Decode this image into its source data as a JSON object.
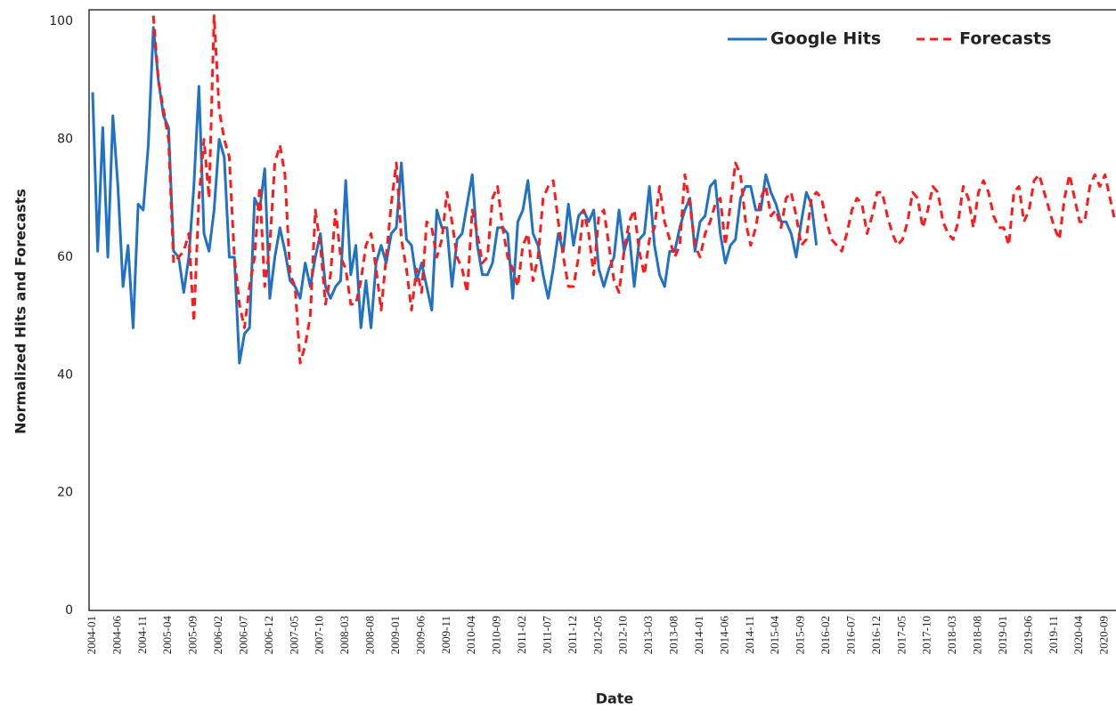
{
  "chart_data": {
    "type": "line",
    "x_label": "Date",
    "y_label": "Normalized Hits and Forecasts",
    "ylim": [
      0,
      102
    ],
    "yticks": [
      0,
      20,
      40,
      60,
      80,
      100
    ],
    "grid": false,
    "legend": "upper right",
    "categories": [
      "2004-01",
      null,
      null,
      null,
      null,
      "2004-06",
      null,
      null,
      null,
      null,
      "2004-11",
      null,
      null,
      null,
      null,
      "2005-04",
      null,
      null,
      null,
      null,
      "2005-09",
      null,
      null,
      null,
      null,
      "2006-02",
      null,
      null,
      null,
      null,
      "2006-07",
      null,
      null,
      null,
      null,
      "2006-12",
      null,
      null,
      null,
      null,
      "2007-05",
      null,
      null,
      null,
      null,
      "2007-10",
      null,
      null,
      null,
      null,
      "2008-03",
      null,
      null,
      null,
      null,
      "2008-08",
      null,
      null,
      null,
      null,
      "2009-01",
      null,
      null,
      null,
      null,
      "2009-06",
      null,
      null,
      null,
      null,
      "2009-11",
      null,
      null,
      null,
      null,
      "2010-04",
      null,
      null,
      null,
      null,
      "2010-09",
      null,
      null,
      null,
      null,
      "2011-02",
      null,
      null,
      null,
      null,
      "2011-07",
      null,
      null,
      null,
      null,
      "2011-12",
      null,
      null,
      null,
      null,
      "2012-05",
      null,
      null,
      null,
      null,
      "2012-10",
      null,
      null,
      null,
      null,
      "2013-03",
      null,
      null,
      null,
      null,
      "2013-08",
      null,
      null,
      null,
      null,
      "2014-01",
      null,
      null,
      null,
      null,
      "2014-06",
      null,
      null,
      null,
      null,
      "2014-11",
      null,
      null,
      null,
      null,
      "2015-04",
      null,
      null,
      null,
      null,
      "2015-09",
      null,
      null,
      null,
      null,
      "2016-02",
      null,
      null,
      null,
      null,
      "2016-07",
      null,
      null,
      null,
      null,
      "2016-12",
      null,
      null,
      null,
      null,
      "2017-05",
      null,
      null,
      null,
      null,
      "2017-10",
      null,
      null,
      null,
      null,
      "2018-03",
      null,
      null,
      null,
      null,
      "2018-08",
      null,
      null,
      null,
      null,
      "2019-01",
      null,
      null,
      null,
      null,
      "2019-06",
      null,
      null,
      null,
      null,
      "2019-11",
      null,
      null,
      null,
      null,
      "2020-04",
      null,
      null,
      null,
      null,
      "2020-09",
      null,
      null
    ],
    "series": [
      {
        "name": "Google Hits",
        "color": "#1f72c6",
        "dash": false,
        "values": [
          88,
          61,
          82,
          60,
          84,
          72,
          55,
          62,
          48,
          69,
          68,
          79,
          99,
          90,
          84,
          82,
          61,
          60,
          54,
          60,
          72,
          89,
          64,
          61,
          68,
          80,
          77,
          60,
          60,
          42,
          47,
          48,
          70,
          68,
          75,
          53,
          60,
          65,
          61,
          56,
          55,
          53,
          59,
          55,
          60,
          64,
          55,
          53,
          55,
          56,
          73,
          57,
          62,
          48,
          56,
          48,
          59,
          62,
          59,
          64,
          65,
          76,
          63,
          62,
          56,
          59,
          55,
          51,
          68,
          65,
          65,
          55,
          63,
          64,
          69,
          74,
          62,
          57,
          57,
          59,
          65,
          65,
          64,
          53,
          66,
          68,
          73,
          64,
          62,
          57,
          53,
          58,
          64,
          61,
          69,
          62,
          67,
          68,
          66,
          68,
          58,
          55,
          58,
          60,
          68,
          61,
          64,
          55,
          63,
          64,
          72,
          62,
          57,
          55,
          61,
          61,
          65,
          68,
          70,
          61,
          66,
          67,
          72,
          73,
          64,
          59,
          62,
          63,
          70,
          72,
          72,
          68,
          68,
          74,
          71,
          69,
          66,
          66,
          64,
          60,
          66,
          71,
          69,
          62,
          null,
          null,
          null,
          null,
          null,
          null,
          null,
          null,
          null,
          null,
          null,
          null,
          null,
          null,
          null,
          null,
          null,
          null,
          null,
          null,
          null,
          null,
          null,
          null,
          null,
          null,
          null,
          null,
          null,
          null,
          null,
          null,
          null,
          null,
          null,
          null,
          null,
          null,
          null,
          null,
          null,
          null,
          null,
          null,
          null,
          null,
          null,
          null,
          null,
          null,
          null,
          null,
          null,
          null,
          null,
          null,
          null,
          null,
          null
        ]
      },
      {
        "name": "Forecasts",
        "color": "#ff1a1a",
        "dash": true,
        "values": [
          null,
          null,
          null,
          null,
          null,
          null,
          null,
          null,
          null,
          null,
          null,
          null,
          101,
          90,
          85,
          80,
          59,
          60,
          61,
          64,
          49,
          70,
          80,
          70,
          101,
          85,
          80,
          77,
          60,
          52,
          48,
          55,
          60,
          72,
          55,
          62,
          76,
          79,
          74,
          57,
          55,
          42,
          45,
          50,
          68,
          62,
          52,
          57,
          68,
          60,
          58,
          52,
          52,
          56,
          62,
          64,
          58,
          51,
          60,
          69,
          76,
          63,
          58,
          51,
          58,
          54,
          66,
          65,
          60,
          63,
          71,
          66,
          60,
          58,
          54,
          68,
          64,
          59,
          60,
          70,
          72,
          65,
          60,
          58,
          55,
          62,
          64,
          56,
          60,
          70,
          72,
          73,
          66,
          60,
          55,
          55,
          60,
          68,
          64,
          57,
          67,
          68,
          62,
          56,
          54,
          61,
          66,
          68,
          61,
          57,
          63,
          65,
          72,
          66,
          63,
          60,
          62,
          74,
          69,
          62,
          60,
          64,
          66,
          69,
          70,
          62,
          69,
          76,
          74,
          66,
          62,
          65,
          70,
          72,
          67,
          68,
          65,
          70,
          71,
          67,
          62,
          63,
          70,
          71,
          70,
          66,
          63,
          62,
          61,
          64,
          68,
          70,
          69,
          64,
          67,
          71,
          71,
          67,
          64,
          62,
          63,
          66,
          71,
          70,
          65,
          68,
          72,
          71,
          66,
          64,
          63,
          66,
          72,
          70,
          65,
          71,
          73,
          71,
          67,
          65,
          65,
          62,
          71,
          72,
          66,
          68,
          73,
          74,
          71,
          68,
          65,
          63,
          70,
          74,
          70,
          66,
          66,
          72,
          74,
          72,
          74,
          70,
          66
        ]
      }
    ]
  }
}
